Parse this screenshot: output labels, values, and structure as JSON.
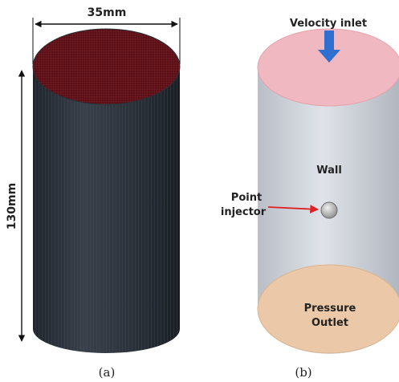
{
  "panel_a": {
    "width_label": "35mm",
    "height_label": "130mm",
    "caption": "(a)"
  },
  "panel_b": {
    "inlet_label": "Velocity inlet",
    "wall_label": "Wall",
    "injector_label_line1": "Point",
    "injector_label_line2": "injector",
    "outlet_label_line1": "Pressure",
    "outlet_label_line2": "Outlet",
    "caption": "(b)"
  },
  "colors": {
    "mesh_body": "#2a2f36",
    "mesh_top": "#5a0f16",
    "domain_body": "#c9ced6",
    "inlet_face": "#f0b8c0",
    "outlet_face": "#eac8a8",
    "arrow_blue": "#2f6fd0",
    "arrow_red": "#e02020"
  }
}
